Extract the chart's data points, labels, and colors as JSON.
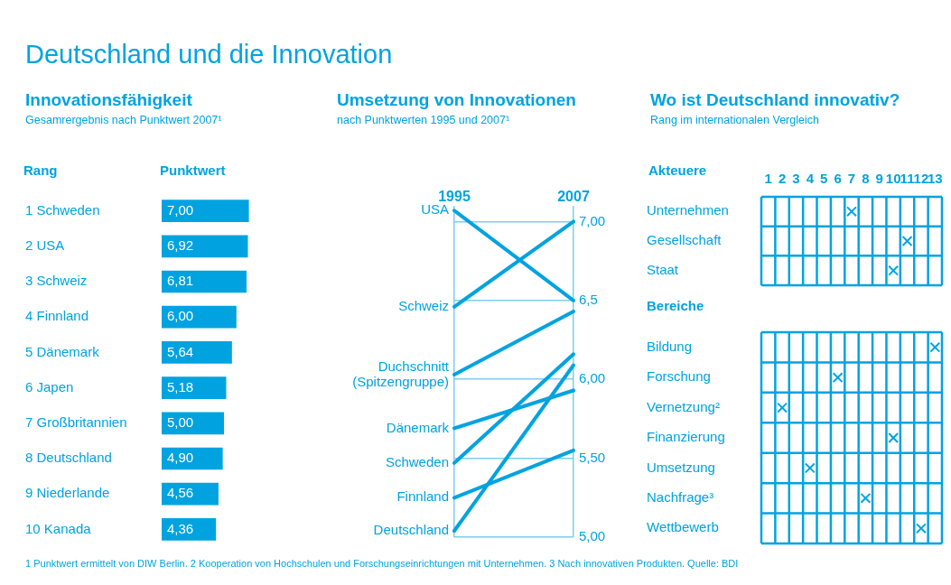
{
  "chart_data": [
    {
      "type": "bar",
      "orientation": "horizontal",
      "title": "Innovationsfähigkeit",
      "subtitle": "Gesamrergebnis nach Punktwert 2007¹",
      "ylabel": "Rang",
      "xlabel": "Punktwert",
      "categories": [
        "1 Schweden",
        "2 USA",
        "3 Schweiz",
        "4 Finnland",
        "5 Dänemark",
        "6 Japen",
        "7 Großbritannien",
        "8 Deutschland",
        "9 Niederlande",
        "10 Kanada"
      ],
      "values": [
        7.0,
        6.92,
        6.81,
        6.0,
        5.64,
        5.18,
        5.0,
        4.9,
        4.56,
        4.36
      ],
      "value_labels": [
        "7,00",
        "6,92",
        "6,81",
        "6,00",
        "5,64",
        "5,18",
        "5,00",
        "4,90",
        "4,56",
        "4,36"
      ],
      "color": "#00a3e0",
      "tick_labels": "y",
      "annotations": [
        "Deutschland und die Innovation",
        "1 Punktwert ermittelt von DIW Berlin. 2 Kooperation von Hochschulen und Forschungseinrichtungen mit Unternehmen. 3 Nach innovativen Produkten. Quelle: BDI"
      ]
    },
    {
      "type": "line",
      "title": "Umsetzung von Innovationen",
      "subtitle": "nach Punktwerten 1995 und 2007¹",
      "categories": [
        "1995",
        "2007"
      ],
      "ylim": [
        5,
        7.1
      ],
      "yticks": [
        {
          "value": 5,
          "label": "5,00"
        },
        {
          "value": 5.5,
          "label": "5,50"
        },
        {
          "value": 6,
          "label": "6,00"
        },
        {
          "value": 6.5,
          "label": "6,5"
        },
        {
          "value": 7,
          "label": "7,00"
        }
      ],
      "grid": true,
      "series": [
        {
          "name": "USA",
          "color": "#00a3e0",
          "values": [
            7.07,
            6.5
          ]
        },
        {
          "name": "Schweiz",
          "color": "#00a3e0",
          "values": [
            6.46,
            7.0
          ]
        },
        {
          "name": "Duchschnitt (Spitzengruppe)",
          "color": "#00a3e0",
          "values": [
            6.03,
            6.43
          ]
        },
        {
          "name": "Dänemark",
          "color": "#00a3e0",
          "values": [
            5.69,
            5.93
          ]
        },
        {
          "name": "Schweden",
          "color": "#00a3e0",
          "values": [
            5.47,
            6.16
          ]
        },
        {
          "name": "Finnland",
          "color": "#00a3e0",
          "values": [
            5.25,
            5.55
          ]
        },
        {
          "name": "Deutschland",
          "color": "#00a3e0",
          "values": [
            5.04,
            6.09
          ]
        }
      ]
    },
    {
      "type": "scatter",
      "orientation": "horizontal",
      "title": "Wo ist Deutschland innovativ?",
      "subtitle": "Rang im internationalen Vergleich",
      "ylabel": "Akteuere",
      "categories": [
        "Unternehmen",
        "Gesellschaft",
        "Staat"
      ],
      "values": [
        7,
        11,
        10
      ],
      "color": "#00a3e0",
      "xlim": [
        0.5,
        13.5
      ],
      "xticks": [
        1,
        2,
        3,
        4,
        5,
        6,
        7,
        8,
        9,
        10,
        11,
        12,
        13
      ],
      "grid": true,
      "marker": "cross"
    },
    {
      "type": "scatter",
      "orientation": "horizontal",
      "ylabel": "Bereiche",
      "categories": [
        "Bildung",
        "Forschung",
        "Vernetzung²",
        "Finanzierung",
        "Umsetzung",
        "Nachfrage³",
        "Wettbewerb"
      ],
      "values": [
        13,
        6,
        2,
        10,
        4,
        8,
        12
      ],
      "color": "#00a3e0",
      "xlim": [
        0.5,
        13.5
      ],
      "xticks": [
        1,
        2,
        3,
        4,
        5,
        6,
        7,
        8,
        9,
        10,
        11,
        12,
        13
      ],
      "grid": true,
      "marker": "cross",
      "tick_labels": "y"
    }
  ]
}
